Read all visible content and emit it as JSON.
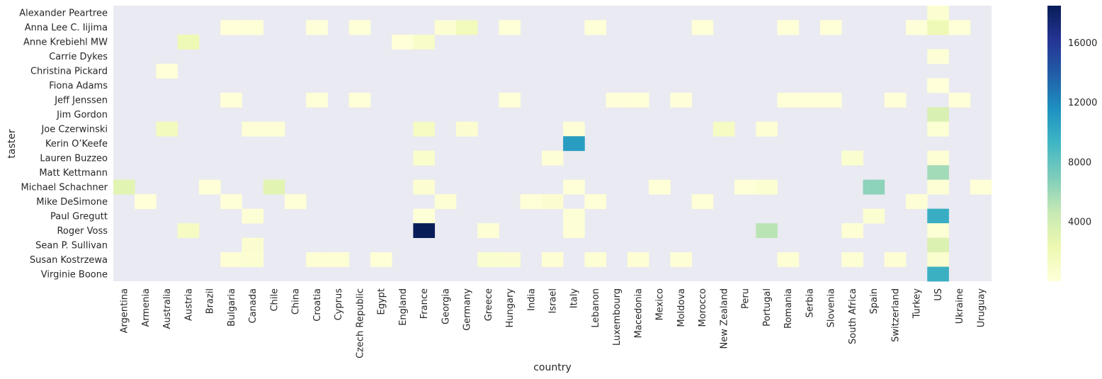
{
  "chart_data": {
    "type": "heatmap",
    "xlabel": "country",
    "ylabel": "taster",
    "x": [
      "Argentina",
      "Armenia",
      "Australia",
      "Austria",
      "Brazil",
      "Bulgaria",
      "Canada",
      "Chile",
      "China",
      "Croatia",
      "Cyprus",
      "Czech Republic",
      "Egypt",
      "England",
      "France",
      "Georgia",
      "Germany",
      "Greece",
      "Hungary",
      "India",
      "Israel",
      "Italy",
      "Lebanon",
      "Luxembourg",
      "Macedonia",
      "Mexico",
      "Moldova",
      "Morocco",
      "New Zealand",
      "Peru",
      "Portugal",
      "Romania",
      "Serbia",
      "Slovenia",
      "South Africa",
      "Spain",
      "Switzerland",
      "Turkey",
      "US",
      "Ukraine",
      "Uruguay"
    ],
    "y": [
      "Alexander Peartree",
      "Anna Lee C. Iijima",
      "Anne Krebiehl MW",
      "Carrie Dykes",
      "Christina Pickard",
      "Fiona Adams",
      "Jeff Jenssen",
      "Jim Gordon",
      "Joe Czerwinski",
      "Kerin O’Keefe",
      "Lauren Buzzeo",
      "Matt Kettmann",
      "Michael Schachner",
      "Mike DeSimone",
      "Paul Gregutt",
      "Roger Voss",
      "Sean P. Sullivan",
      "Susan Kostrzewa",
      "Virginie Boone"
    ],
    "cells": [
      [
        0,
        38,
        400
      ],
      [
        1,
        5,
        50
      ],
      [
        1,
        6,
        100
      ],
      [
        1,
        9,
        80
      ],
      [
        1,
        11,
        100
      ],
      [
        1,
        15,
        400
      ],
      [
        1,
        16,
        1700
      ],
      [
        1,
        18,
        100
      ],
      [
        1,
        22,
        150
      ],
      [
        1,
        27,
        100
      ],
      [
        1,
        31,
        120
      ],
      [
        1,
        33,
        100
      ],
      [
        1,
        37,
        80
      ],
      [
        1,
        38,
        2000
      ],
      [
        1,
        39,
        100
      ],
      [
        2,
        3,
        2000
      ],
      [
        2,
        13,
        50
      ],
      [
        2,
        14,
        1000
      ],
      [
        3,
        38,
        200
      ],
      [
        4,
        2,
        50
      ],
      [
        5,
        38,
        20
      ],
      [
        6,
        5,
        100
      ],
      [
        6,
        9,
        100
      ],
      [
        6,
        11,
        100
      ],
      [
        6,
        18,
        100
      ],
      [
        6,
        23,
        80
      ],
      [
        6,
        24,
        100
      ],
      [
        6,
        26,
        80
      ],
      [
        6,
        31,
        100
      ],
      [
        6,
        32,
        100
      ],
      [
        6,
        33,
        100
      ],
      [
        6,
        36,
        100
      ],
      [
        6,
        39,
        100
      ],
      [
        7,
        38,
        3500
      ],
      [
        8,
        2,
        1600
      ],
      [
        8,
        6,
        250
      ],
      [
        8,
        7,
        250
      ],
      [
        8,
        14,
        1200
      ],
      [
        8,
        16,
        500
      ],
      [
        8,
        21,
        200
      ],
      [
        8,
        28,
        1200
      ],
      [
        8,
        30,
        300
      ],
      [
        8,
        38,
        350
      ],
      [
        9,
        21,
        10800
      ],
      [
        10,
        14,
        800
      ],
      [
        10,
        20,
        200
      ],
      [
        10,
        34,
        700
      ],
      [
        10,
        38,
        300
      ],
      [
        11,
        38,
        5800
      ],
      [
        12,
        0,
        3000
      ],
      [
        12,
        4,
        100
      ],
      [
        12,
        7,
        3000
      ],
      [
        12,
        14,
        400
      ],
      [
        12,
        21,
        150
      ],
      [
        12,
        25,
        100
      ],
      [
        12,
        29,
        100
      ],
      [
        12,
        30,
        450
      ],
      [
        12,
        35,
        6500
      ],
      [
        12,
        38,
        300
      ],
      [
        12,
        40,
        100
      ],
      [
        13,
        1,
        50
      ],
      [
        13,
        5,
        100
      ],
      [
        13,
        8,
        100
      ],
      [
        13,
        15,
        300
      ],
      [
        13,
        19,
        100
      ],
      [
        13,
        20,
        500
      ],
      [
        13,
        22,
        150
      ],
      [
        13,
        27,
        150
      ],
      [
        13,
        37,
        250
      ],
      [
        14,
        6,
        250
      ],
      [
        14,
        14,
        150
      ],
      [
        14,
        21,
        200
      ],
      [
        14,
        35,
        400
      ],
      [
        14,
        38,
        9800
      ],
      [
        15,
        3,
        1200
      ],
      [
        15,
        14,
        18500
      ],
      [
        15,
        17,
        300
      ],
      [
        15,
        21,
        250
      ],
      [
        15,
        30,
        5000
      ],
      [
        15,
        34,
        300
      ],
      [
        15,
        38,
        350
      ],
      [
        16,
        6,
        500
      ],
      [
        16,
        38,
        3400
      ],
      [
        17,
        5,
        300
      ],
      [
        17,
        6,
        400
      ],
      [
        17,
        9,
        300
      ],
      [
        17,
        10,
        300
      ],
      [
        17,
        12,
        150
      ],
      [
        17,
        17,
        700
      ],
      [
        17,
        18,
        500
      ],
      [
        17,
        20,
        300
      ],
      [
        17,
        22,
        300
      ],
      [
        17,
        24,
        300
      ],
      [
        17,
        26,
        200
      ],
      [
        17,
        31,
        300
      ],
      [
        17,
        34,
        300
      ],
      [
        17,
        36,
        300
      ],
      [
        17,
        38,
        700
      ],
      [
        18,
        38,
        9600
      ]
    ],
    "colorbar": {
      "min": 0,
      "max": 18500,
      "ticks": [
        4000,
        8000,
        12000,
        16000
      ],
      "colormap": "YlGnBu"
    },
    "missing_color": "#eaeaf2",
    "grid": false
  }
}
